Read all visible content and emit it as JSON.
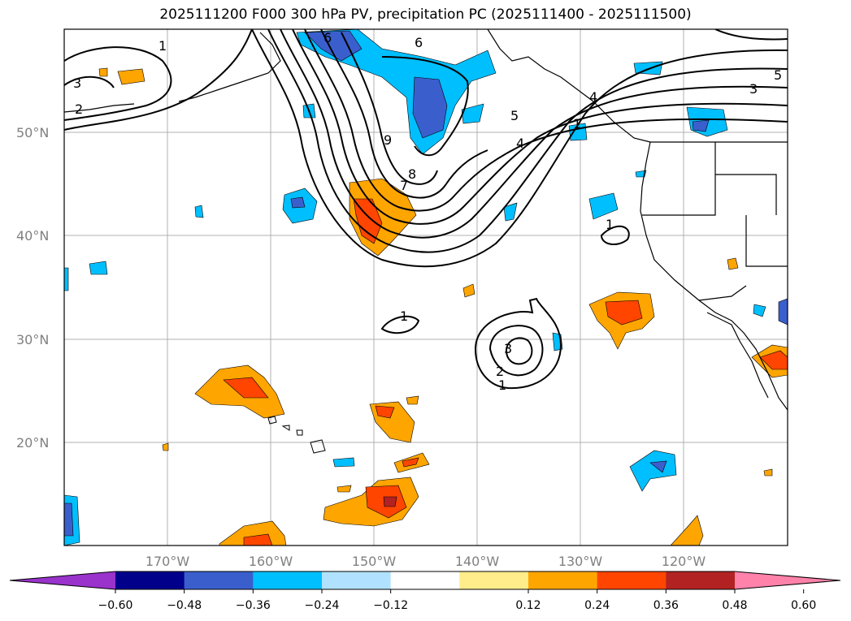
{
  "title": "2025111200 F000 300 hPa PV, precipitation PC (2025111400 - 2025111500)",
  "lat_labels": [
    "50°N",
    "40°N",
    "30°N",
    "20°N"
  ],
  "lon_labels": [
    "170°W",
    "160°W",
    "150°W",
    "140°W",
    "130°W",
    "120°W"
  ],
  "colorbar": {
    "ticks": [
      "−0.60",
      "−0.48",
      "−0.36",
      "−0.24",
      "−0.12",
      "0.12",
      "0.24",
      "0.36",
      "0.48",
      "0.60"
    ],
    "colors": [
      "#9933cc",
      "#00008b",
      "#3a5fcd",
      "#00bfff",
      "#b0e2ff",
      "#ffffff",
      "#ffec8b",
      "#ffa500",
      "#ff4500",
      "#b22222",
      "#ff82ab"
    ]
  },
  "contour_labels": [
    "1",
    "2",
    "3",
    "6",
    "5",
    "4",
    "9",
    "8",
    "7",
    "6",
    "5",
    "4",
    "3",
    "1",
    "1",
    "1",
    "3",
    "2",
    "1"
  ],
  "map": {
    "lat_range": [
      10,
      60
    ],
    "lon_range": [
      -180,
      -110
    ],
    "grid": true
  }
}
